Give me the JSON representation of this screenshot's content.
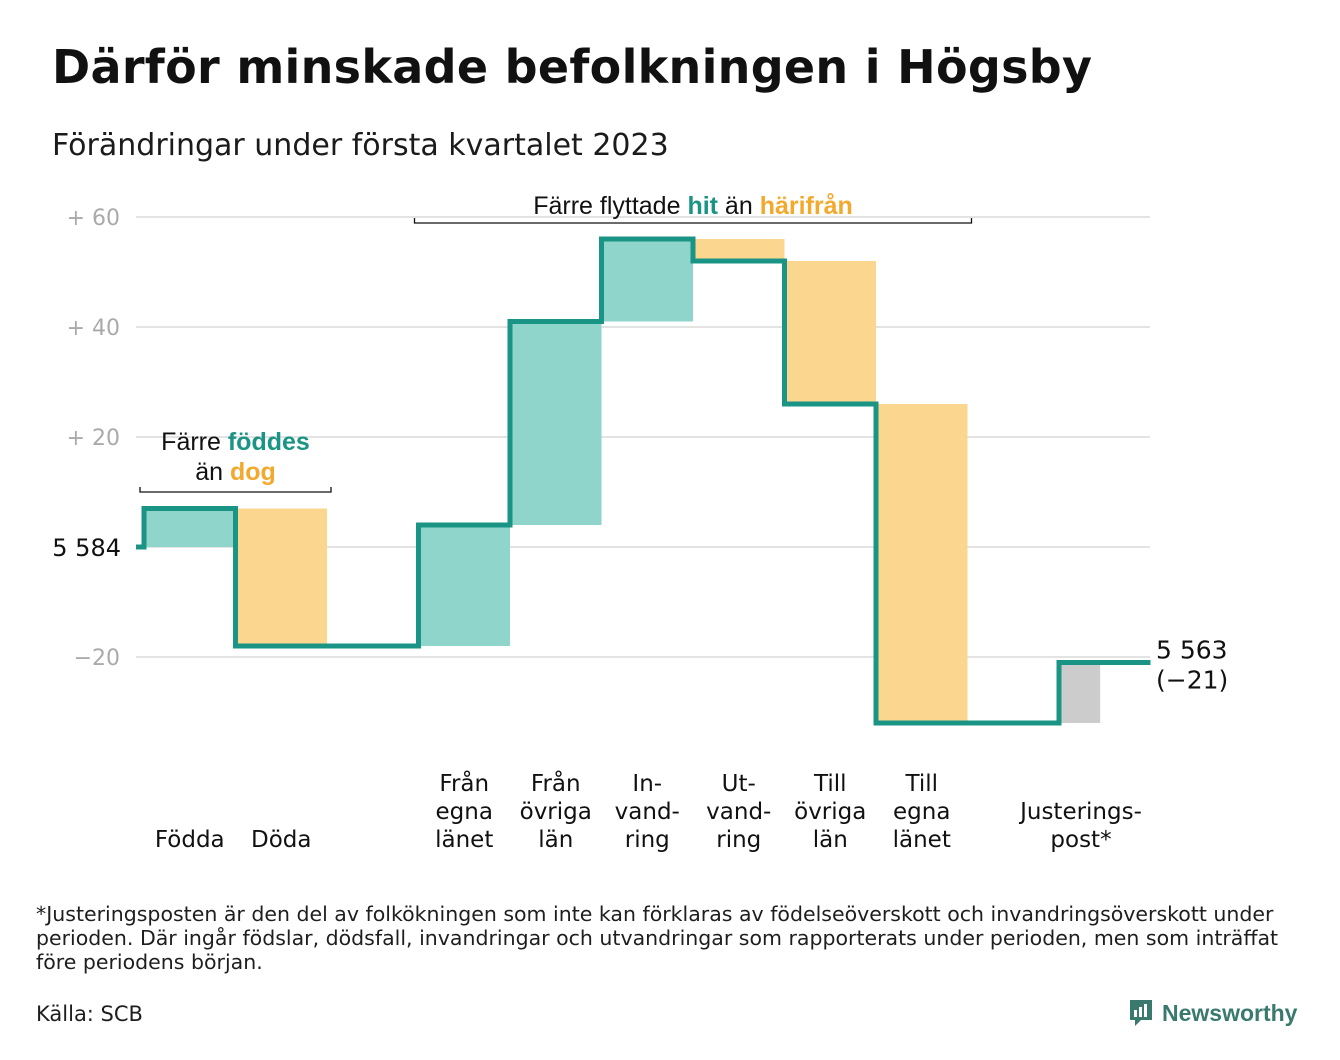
{
  "title": "Därför minskade befolkningen i Högsby",
  "subtitle": "Förändringar under första kvartalet 2023",
  "footnote": "*Justeringsposten är den del av folkökningen som inte kan förklaras av födelseöverskott och invandringsöverskott under perioden. Där ingår födslar, dödsfall, invandringar och utvandringar som rapporterats under perioden, men som inträffat före periodens början.",
  "source": "Källa: SCB",
  "brand": {
    "name": "Newsworthy",
    "icon": "newsworthy-logo-icon"
  },
  "colors": {
    "increase": "#8fd5cc",
    "decrease": "#fbd68f",
    "adjustment": "#cccccc",
    "line": "#1a9484",
    "accent_teal": "#1a9484",
    "accent_orange": "#f2a92e",
    "grid": "#e3e3e3",
    "tick": "#aaaaaa"
  },
  "chart_data": {
    "type": "waterfall",
    "start_value": 5584,
    "start_label": "5 584",
    "end_value": 5563,
    "end_label": "5 563",
    "end_change_label": "(−21)",
    "ylim": [
      -31,
      62
    ],
    "yticks": [
      {
        "value": 60,
        "label": "+ 60"
      },
      {
        "value": 40,
        "label": "+ 40"
      },
      {
        "value": 20,
        "label": "+ 20"
      },
      {
        "value": 0,
        "label": ""
      },
      {
        "value": -20,
        "label": "−20"
      }
    ],
    "steps": [
      {
        "category": "Födda",
        "lines": [
          "Födda"
        ],
        "change": 7,
        "kind": "increase"
      },
      {
        "category": "Döda",
        "lines": [
          "Döda"
        ],
        "change": -25,
        "kind": "decrease"
      },
      {
        "category": "",
        "lines": [],
        "change": 0,
        "kind": "gap"
      },
      {
        "category": "Från egna länet",
        "lines": [
          "Från",
          "egna",
          "länet"
        ],
        "change": 22,
        "kind": "increase"
      },
      {
        "category": "Från övriga län",
        "lines": [
          "Från",
          "övriga",
          "län"
        ],
        "change": 37,
        "kind": "increase"
      },
      {
        "category": "Invandring",
        "lines": [
          "In-",
          "vand-",
          "ring"
        ],
        "change": 15,
        "kind": "increase"
      },
      {
        "category": "Utvandring",
        "lines": [
          "Ut-",
          "vand-",
          "ring"
        ],
        "change": -4,
        "kind": "decrease"
      },
      {
        "category": "Till övriga län",
        "lines": [
          "Till",
          "övriga",
          "län"
        ],
        "change": -26,
        "kind": "decrease"
      },
      {
        "category": "Till egna länet",
        "lines": [
          "Till",
          "egna",
          "länet"
        ],
        "change": -58,
        "kind": "decrease"
      },
      {
        "category": "",
        "lines": [],
        "change": 0,
        "kind": "gap"
      },
      {
        "category": "Justeringspost*",
        "lines": [
          "Justerings-",
          "post*"
        ],
        "change": 11,
        "kind": "adjustment"
      }
    ],
    "annotations": [
      {
        "from_step": 0,
        "to_step": 1,
        "value": 10,
        "parts": [
          {
            "text": "Färre ",
            "color": "#111111",
            "bold": false
          },
          {
            "text": "föddes",
            "color": "#1a9484",
            "bold": true
          }
        ],
        "parts_line2": [
          {
            "text": "än ",
            "color": "#111111",
            "bold": false
          },
          {
            "text": "dog",
            "color": "#f2a92e",
            "bold": true
          }
        ]
      },
      {
        "from_step": 3,
        "to_step": 8,
        "value": 60,
        "parts": [
          {
            "text": "Färre flyttade ",
            "color": "#111111",
            "bold": false
          },
          {
            "text": "hit",
            "color": "#1a9484",
            "bold": true
          },
          {
            "text": " än ",
            "color": "#111111",
            "bold": false
          },
          {
            "text": "härifrån",
            "color": "#f2a92e",
            "bold": true
          }
        ]
      }
    ]
  }
}
